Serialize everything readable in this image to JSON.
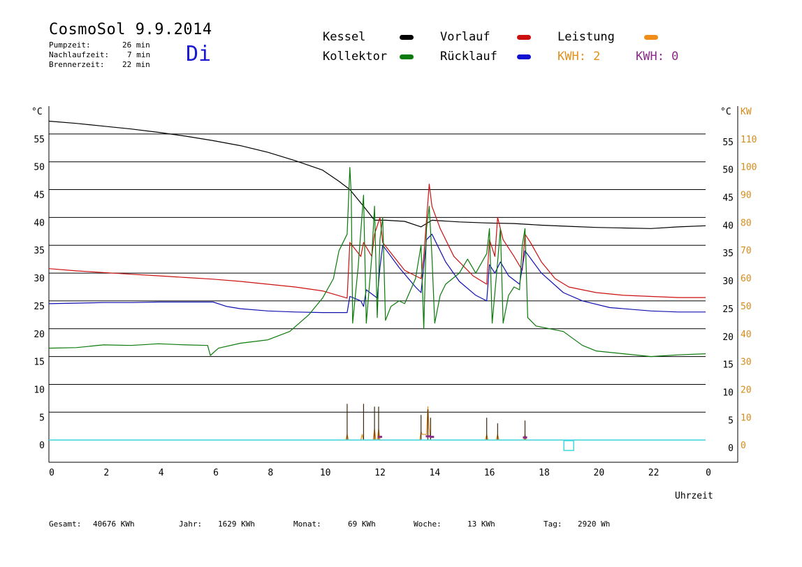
{
  "header": {
    "title": "CosmoSol 9.9.2014",
    "day": "Di",
    "stats": [
      {
        "label": "Pumpzeit:",
        "value": "26 min"
      },
      {
        "label": "Nachlaufzeit:",
        "value": "7 min"
      },
      {
        "label": "Brennerzeit:",
        "value": "22 min"
      }
    ]
  },
  "legend": {
    "kessel": "Kessel",
    "kollektor": "Kollektor",
    "vorlauf": "Vorlauf",
    "ruecklauf": "Rücklauf",
    "leistung": "Leistung",
    "kwh1": "KWH: 2",
    "kwh2": "KWH: 0"
  },
  "footer": {
    "gesamt_label": "Gesamt:",
    "gesamt_value": "40676 KWh",
    "jahr_label": "Jahr:",
    "jahr_value": "1629 KWh",
    "monat_label": "Monat:",
    "monat_value": "69 KWh",
    "woche_label": "Woche:",
    "woche_value": "13 KWh",
    "tag_label": "Tag:",
    "tag_value": "2920 Wh"
  },
  "chart_data": {
    "type": "line",
    "xlabel": "Uhrzeit",
    "ylabel_left": "°C",
    "ylabel_right_1": "°C",
    "ylabel_right_2": "KW",
    "xlim": [
      0,
      24
    ],
    "ylim": [
      -4,
      60
    ],
    "x_ticks": [
      "0",
      "2",
      "4",
      "6",
      "8",
      "10",
      "12",
      "14",
      "16",
      "18",
      "20",
      "22",
      "0"
    ],
    "y_ticks": [
      0,
      5,
      10,
      15,
      20,
      25,
      30,
      35,
      40,
      45,
      50,
      55
    ],
    "kw_ticks": [
      0,
      10,
      20,
      30,
      40,
      50,
      60,
      70,
      80,
      90,
      100,
      110
    ],
    "grid": true,
    "colors": {
      "kessel": "#000000",
      "kollektor": "#0a7a0a",
      "vorlauf": "#cc1010",
      "ruecklauf": "#1010b0",
      "leistung": "#e89020",
      "kwh": "#d88a18",
      "kwh2": "#8a2a8a",
      "baseline": "#40d8e0"
    },
    "series": [
      {
        "name": "Kessel",
        "key": "kessel",
        "points": [
          [
            0,
            57.3
          ],
          [
            1,
            56.9
          ],
          [
            2,
            56.4
          ],
          [
            3,
            55.9
          ],
          [
            4,
            55.3
          ],
          [
            5,
            54.6
          ],
          [
            6,
            53.8
          ],
          [
            7,
            52.9
          ],
          [
            8,
            51.7
          ],
          [
            9,
            50.2
          ],
          [
            10,
            48.5
          ],
          [
            10.6,
            46.5
          ],
          [
            11,
            45
          ],
          [
            11.5,
            42
          ],
          [
            11.9,
            39.5
          ],
          [
            12.3,
            39.5
          ],
          [
            13,
            39.3
          ],
          [
            13.6,
            38.3
          ],
          [
            14,
            39.5
          ],
          [
            15,
            39.2
          ],
          [
            16,
            39
          ],
          [
            17,
            38.9
          ],
          [
            18,
            38.6
          ],
          [
            19,
            38.4
          ],
          [
            20,
            38.2
          ],
          [
            21,
            38.1
          ],
          [
            22,
            38
          ],
          [
            23,
            38.3
          ],
          [
            24,
            38.5
          ]
        ]
      },
      {
        "name": "Kollektor",
        "key": "kollektor",
        "points": [
          [
            0,
            16.5
          ],
          [
            1,
            16.6
          ],
          [
            2,
            17.1
          ],
          [
            3,
            17
          ],
          [
            4,
            17.3
          ],
          [
            5,
            17.1
          ],
          [
            5.8,
            17
          ],
          [
            5.9,
            15.2
          ],
          [
            6.2,
            16.5
          ],
          [
            7,
            17.4
          ],
          [
            8,
            18
          ],
          [
            8.8,
            19.5
          ],
          [
            9.5,
            22.5
          ],
          [
            10,
            25.5
          ],
          [
            10.4,
            29
          ],
          [
            10.6,
            34
          ],
          [
            10.9,
            37
          ],
          [
            11,
            49
          ],
          [
            11.05,
            44
          ],
          [
            11.1,
            21
          ],
          [
            11.3,
            31
          ],
          [
            11.5,
            44
          ],
          [
            11.6,
            21
          ],
          [
            11.8,
            33
          ],
          [
            11.9,
            42
          ],
          [
            12,
            22
          ],
          [
            12.1,
            36
          ],
          [
            12.2,
            40
          ],
          [
            12.3,
            21.5
          ],
          [
            12.5,
            24
          ],
          [
            12.8,
            25
          ],
          [
            13,
            24.5
          ],
          [
            13.4,
            29
          ],
          [
            13.6,
            35
          ],
          [
            13.7,
            20
          ],
          [
            13.8,
            38
          ],
          [
            13.9,
            42
          ],
          [
            14,
            33
          ],
          [
            14.1,
            21
          ],
          [
            14.3,
            26
          ],
          [
            14.5,
            28
          ],
          [
            15,
            30
          ],
          [
            15.3,
            32.5
          ],
          [
            15.6,
            30
          ],
          [
            16,
            33.5
          ],
          [
            16.1,
            38
          ],
          [
            16.2,
            21
          ],
          [
            16.4,
            32
          ],
          [
            16.5,
            38
          ],
          [
            16.6,
            21
          ],
          [
            16.8,
            26
          ],
          [
            17,
            27.5
          ],
          [
            17.2,
            27
          ],
          [
            17.3,
            35
          ],
          [
            17.4,
            38
          ],
          [
            17.5,
            22
          ],
          [
            17.8,
            20.5
          ],
          [
            18.3,
            20
          ],
          [
            18.8,
            19.5
          ],
          [
            19.5,
            17
          ],
          [
            20,
            16
          ],
          [
            21,
            15.5
          ],
          [
            22,
            15
          ],
          [
            23,
            15.3
          ],
          [
            24,
            15.5
          ]
        ]
      },
      {
        "name": "Vorlauf",
        "key": "vorlauf",
        "points": [
          [
            0,
            30.8
          ],
          [
            1,
            30.4
          ],
          [
            2,
            30.1
          ],
          [
            3,
            29.8
          ],
          [
            4,
            29.5
          ],
          [
            5,
            29.2
          ],
          [
            6,
            28.9
          ],
          [
            7,
            28.5
          ],
          [
            8,
            28
          ],
          [
            9,
            27.5
          ],
          [
            10,
            26.8
          ],
          [
            10.9,
            25.5
          ],
          [
            11,
            35.5
          ],
          [
            11.4,
            33
          ],
          [
            11.5,
            35.5
          ],
          [
            11.8,
            33
          ],
          [
            11.9,
            37
          ],
          [
            12.1,
            40
          ],
          [
            12.2,
            35.5
          ],
          [
            12.6,
            33
          ],
          [
            13,
            30.5
          ],
          [
            13.6,
            29
          ],
          [
            13.7,
            33
          ],
          [
            13.9,
            46
          ],
          [
            14,
            42
          ],
          [
            14.3,
            38
          ],
          [
            14.8,
            33
          ],
          [
            15.5,
            29.5
          ],
          [
            16,
            28
          ],
          [
            16.1,
            36
          ],
          [
            16.3,
            33
          ],
          [
            16.4,
            40
          ],
          [
            16.6,
            36
          ],
          [
            17,
            33
          ],
          [
            17.3,
            30.5
          ],
          [
            17.4,
            37
          ],
          [
            17.6,
            35.5
          ],
          [
            18,
            32
          ],
          [
            18.5,
            29
          ],
          [
            19,
            27.5
          ],
          [
            20,
            26.5
          ],
          [
            21,
            26
          ],
          [
            22,
            25.8
          ],
          [
            23,
            25.6
          ],
          [
            24,
            25.6
          ]
        ]
      },
      {
        "name": "Rücklauf",
        "key": "ruecklauf",
        "points": [
          [
            0,
            24.5
          ],
          [
            1,
            24.6
          ],
          [
            2,
            24.7
          ],
          [
            3,
            24.7
          ],
          [
            4,
            24.8
          ],
          [
            5,
            24.8
          ],
          [
            6,
            24.8
          ],
          [
            6.5,
            24
          ],
          [
            7,
            23.6
          ],
          [
            8,
            23.2
          ],
          [
            9,
            23
          ],
          [
            10,
            22.9
          ],
          [
            10.9,
            22.9
          ],
          [
            11,
            25.8
          ],
          [
            11.4,
            25
          ],
          [
            11.5,
            24
          ],
          [
            11.6,
            27
          ],
          [
            12,
            25.5
          ],
          [
            12.1,
            31
          ],
          [
            12.2,
            35
          ],
          [
            12.8,
            31
          ],
          [
            13.4,
            27.5
          ],
          [
            13.6,
            26.5
          ],
          [
            13.8,
            36
          ],
          [
            14,
            37
          ],
          [
            14.5,
            32
          ],
          [
            15,
            28.5
          ],
          [
            15.6,
            26
          ],
          [
            16,
            25
          ],
          [
            16.1,
            31.5
          ],
          [
            16.3,
            30
          ],
          [
            16.5,
            32
          ],
          [
            16.8,
            29.5
          ],
          [
            17.2,
            28
          ],
          [
            17.4,
            34
          ],
          [
            18,
            30
          ],
          [
            18.8,
            26.5
          ],
          [
            19.5,
            25
          ],
          [
            20.5,
            23.8
          ],
          [
            22,
            23.2
          ],
          [
            23,
            23
          ],
          [
            24,
            23
          ]
        ]
      },
      {
        "name": "Leistung",
        "key": "leistung",
        "points": [
          [
            0,
            0
          ],
          [
            10.85,
            0
          ],
          [
            10.9,
            1
          ],
          [
            10.95,
            0
          ],
          [
            11.4,
            0
          ],
          [
            11.45,
            1
          ],
          [
            11.5,
            0
          ],
          [
            11.85,
            0
          ],
          [
            11.9,
            2
          ],
          [
            11.95,
            0
          ],
          [
            12.0,
            0
          ],
          [
            12.05,
            2
          ],
          [
            12.1,
            0
          ],
          [
            13.55,
            0
          ],
          [
            13.6,
            1.5
          ],
          [
            13.65,
            1
          ],
          [
            13.8,
            1
          ],
          [
            13.85,
            6
          ],
          [
            13.9,
            2
          ],
          [
            13.95,
            0
          ],
          [
            15.95,
            0
          ],
          [
            16.0,
            1
          ],
          [
            16.05,
            0
          ],
          [
            16.35,
            0
          ],
          [
            16.4,
            1
          ],
          [
            16.45,
            0
          ],
          [
            17.35,
            0
          ],
          [
            17.4,
            1
          ],
          [
            17.45,
            0
          ],
          [
            24,
            0
          ]
        ]
      }
    ],
    "brenner_spikes": [
      [
        10.9,
        6.5
      ],
      [
        11.5,
        6.5
      ],
      [
        11.9,
        6
      ],
      [
        12.05,
        6
      ],
      [
        13.6,
        4.5
      ],
      [
        13.85,
        5.5
      ],
      [
        13.95,
        4
      ],
      [
        16.0,
        4
      ],
      [
        16.4,
        3
      ],
      [
        17.4,
        3.5
      ]
    ],
    "marker": {
      "x": 19.0,
      "y": -1
    }
  }
}
